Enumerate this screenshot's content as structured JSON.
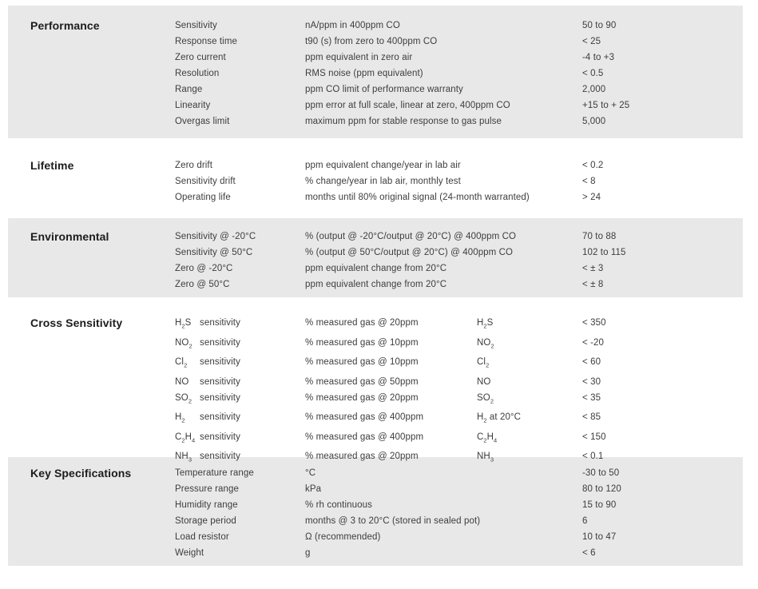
{
  "document": {
    "kind": "gas-sensor-specification-table",
    "band_color": "#e9e8e8",
    "text_color": "#3d3d3d",
    "title_color": "#1c1c1c"
  },
  "sections": [
    {
      "title": "Performance",
      "shaded": true,
      "rows": [
        {
          "label": "Sensitivity",
          "description": "nA/ppm in 400ppm CO",
          "value": "50 to 90"
        },
        {
          "label": "Response time",
          "description": "t90 (s) from zero to 400ppm CO",
          "value": "< 25"
        },
        {
          "label": "Zero current",
          "description": "ppm equivalent in zero air",
          "value": "-4 to +3"
        },
        {
          "label": "Resolution",
          "description": "RMS noise (ppm equivalent)",
          "value": "< 0.5"
        },
        {
          "label": "Range",
          "description": "ppm CO limit of performance warranty",
          "value": "2,000"
        },
        {
          "label": "Linearity",
          "description": "ppm error at full scale, linear at zero, 400ppm CO",
          "value": "+15 to + 25"
        },
        {
          "label": "Overgas limit",
          "description": "maximum ppm for stable response to gas pulse",
          "value": "5,000"
        }
      ]
    },
    {
      "title": "Lifetime",
      "shaded": false,
      "rows": [
        {
          "label": "Zero drift",
          "description": "ppm equivalent change/year in lab air",
          "value": "< 0.2"
        },
        {
          "label": "Sensitivity drift",
          "description": "% change/year in lab air, monthly test",
          "value": "< 8"
        },
        {
          "label": "Operating life",
          "description": "months until 80% original signal (24-month warranted)",
          "value": "> 24"
        }
      ]
    },
    {
      "title": "Environmental",
      "shaded": true,
      "rows": [
        {
          "label": "Sensitivity @ -20°C",
          "description": "% (output @ -20°C/output @ 20°C) @ 400ppm CO",
          "value": "70 to 88"
        },
        {
          "label": "Sensitivity @ 50°C",
          "description": "% (output @ 50°C/output @ 20°C) @ 400ppm CO",
          "value": "102 to 115"
        },
        {
          "label": "Zero @ -20°C",
          "description": "ppm equivalent change from 20°C",
          "value": "< ± 3"
        },
        {
          "label": "Zero @ 50°C",
          "description": "ppm equivalent change from 20°C",
          "value": "< ± 8"
        }
      ]
    },
    {
      "title": "Cross Sensitivity",
      "shaded": false,
      "rows": [
        {
          "label_formula": "H_2S",
          "label": "sensitivity",
          "description": "% measured gas @ 20ppm",
          "formula": "H_2S",
          "value": "< 350"
        },
        {
          "label_formula": "NO_2",
          "label": "sensitivity",
          "description": "% measured gas @ 10ppm",
          "formula": "NO_2",
          "value": "< -20"
        },
        {
          "label_formula": "Cl_2",
          "label": "sensitivity",
          "description": "% measured gas @ 10ppm",
          "formula": "Cl_2",
          "value": "< 60"
        },
        {
          "label_formula": "NO",
          "label": "sensitivity",
          "description": "% measured gas @ 50ppm",
          "formula": "NO",
          "value": "< 30"
        },
        {
          "label_formula": "SO_2",
          "label": "sensitivity",
          "description": "% measured gas @ 20ppm",
          "formula": "SO_2",
          "value": "< 35"
        },
        {
          "label_formula": "H_2",
          "label": "sensitivity",
          "description": "% measured gas @ 400ppm",
          "formula": "H_2 at 20°C",
          "value": "< 85"
        },
        {
          "label_formula": "C_2H_4",
          "label": "sensitivity",
          "description": "% measured gas @ 400ppm",
          "formula": "C_2H_4",
          "value": "< 150"
        },
        {
          "label_formula": "NH_3",
          "label": "sensitivity",
          "description": "% measured gas @ 20ppm",
          "formula": "NH_3",
          "value": "< 0.1"
        }
      ]
    },
    {
      "title": "Key Specifications",
      "shaded": true,
      "rows": [
        {
          "label": "Temperature range",
          "description": "°C",
          "value": "-30 to 50"
        },
        {
          "label": "Pressure range",
          "description": "kPa",
          "value": "80 to 120"
        },
        {
          "label": "Humidity range",
          "description": "% rh continuous",
          "value": "15 to 90"
        },
        {
          "label": "Storage period",
          "description": "months @ 3 to 20°C (stored in sealed pot)",
          "value": "6"
        },
        {
          "label": "Load resistor",
          "description": "Ω (recommended)",
          "value": "10 to 47"
        },
        {
          "label": "Weight",
          "description": "g",
          "value": "< 6"
        }
      ]
    }
  ]
}
